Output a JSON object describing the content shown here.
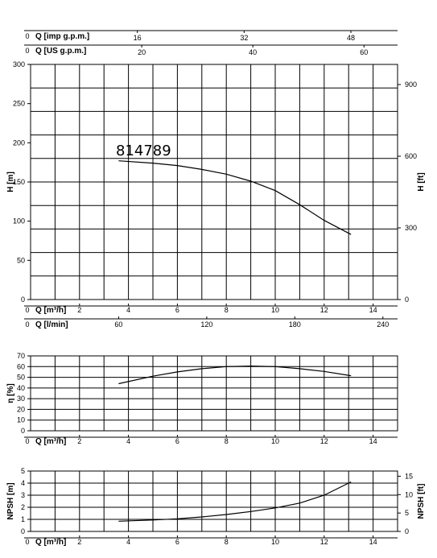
{
  "chart_data": [
    {
      "id": "head",
      "type": "line",
      "curve_label": "814789",
      "xlabel": "Q [m³/h]",
      "ylabel": "H [m]",
      "ylabel_right": "H [ft]",
      "xlim": [
        0,
        15
      ],
      "ylim": [
        0,
        300
      ],
      "x_ticks": [
        0,
        2,
        4,
        6,
        8,
        10,
        12,
        14
      ],
      "y_ticks": [
        0,
        50,
        100,
        150,
        200,
        250,
        300
      ],
      "y_right_ticks": [
        0,
        300,
        600,
        900
      ],
      "grid": true,
      "extra_x_axes": [
        {
          "name": "imp",
          "label": "Q [imp g.p.m.]",
          "origin_label": "0",
          "ticks": [
            {
              "v": 16,
              "label": "16"
            },
            {
              "v": 32,
              "label": "32"
            },
            {
              "v": 48,
              "label": "48"
            }
          ]
        },
        {
          "name": "us",
          "label": "Q [US g.p.m.]",
          "origin_label": "0",
          "ticks": [
            {
              "v": 20,
              "label": "20"
            },
            {
              "v": 40,
              "label": "40"
            },
            {
              "v": 60,
              "label": "60"
            }
          ]
        },
        {
          "name": "lmin",
          "label": "Q [l/min]",
          "origin_label": "0",
          "ticks": [
            {
              "v": 60,
              "label": "60"
            },
            {
              "v": 120,
              "label": "120"
            },
            {
              "v": 180,
              "label": "180"
            },
            {
              "v": 240,
              "label": "240"
            }
          ]
        }
      ],
      "series": [
        {
          "x": [
            3.6,
            5,
            6,
            7,
            8,
            9,
            10,
            11,
            12,
            13.1
          ],
          "y": [
            177,
            174,
            171,
            166,
            160,
            151,
            139,
            121,
            101,
            83
          ]
        }
      ]
    },
    {
      "id": "eff",
      "type": "line",
      "xlabel": "Q [m³/h]",
      "ylabel": "η [%]",
      "xlim": [
        0,
        15
      ],
      "ylim": [
        0,
        70
      ],
      "x_ticks": [
        0,
        2,
        4,
        6,
        8,
        10,
        12,
        14
      ],
      "y_ticks": [
        0,
        10,
        20,
        30,
        40,
        50,
        60,
        70
      ],
      "grid": true,
      "series": [
        {
          "x": [
            3.6,
            5,
            6,
            7,
            8,
            9,
            10,
            11,
            12,
            13.1
          ],
          "y": [
            44,
            51,
            55,
            58,
            60,
            60.5,
            60,
            58,
            55.5,
            51.5
          ]
        }
      ]
    },
    {
      "id": "npsh",
      "type": "line",
      "xlabel": "Q [m³/h]",
      "ylabel": "NPSH [m]",
      "ylabel_right": "NPSH [ft]",
      "xlim": [
        0,
        15
      ],
      "ylim": [
        0,
        5
      ],
      "x_ticks": [
        0,
        2,
        4,
        6,
        8,
        10,
        12,
        14
      ],
      "y_ticks": [
        0,
        1,
        2,
        3,
        4,
        5
      ],
      "y_right_ticks": [
        0,
        5,
        10,
        15
      ],
      "grid": true,
      "series": [
        {
          "x": [
            3.6,
            5,
            6,
            7,
            8,
            9,
            10,
            11,
            12,
            13.1
          ],
          "y": [
            0.85,
            0.95,
            1.05,
            1.2,
            1.4,
            1.65,
            1.95,
            2.35,
            3.0,
            4.1
          ]
        }
      ]
    }
  ]
}
